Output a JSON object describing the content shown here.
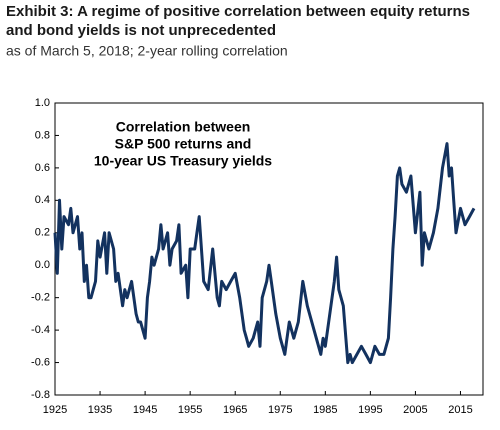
{
  "chart_data": {
    "type": "line",
    "title": [
      "Exhibit 3: A regime of positive correlation between equity returns",
      "and bond yields is not unprecedented"
    ],
    "subtitle": "as of March 5, 2018; 2-year rolling correlation",
    "annotation": [
      "Correlation between",
      "S&P 500 returns and",
      "10-year US Treasury yields"
    ],
    "x": [
      1925,
      1925.5,
      1926,
      1926.5,
      1927,
      1928,
      1928.5,
      1929,
      1930,
      1930.5,
      1931,
      1931.5,
      1932,
      1932.5,
      1933,
      1934,
      1934.5,
      1935,
      1936,
      1936.5,
      1937,
      1938,
      1938.5,
      1939,
      1940,
      1940.5,
      1941,
      1942,
      1943,
      1943.5,
      1944,
      1945,
      1945.5,
      1946,
      1946.5,
      1947,
      1948,
      1948.5,
      1949,
      1950,
      1950.5,
      1951,
      1952,
      1952.5,
      1953,
      1954,
      1954.5,
      1955,
      1956,
      1956.5,
      1957,
      1958,
      1959,
      1960,
      1961,
      1961.5,
      1962,
      1963,
      1964,
      1965,
      1966,
      1967,
      1967.5,
      1968,
      1969,
      1970,
      1970.5,
      1971,
      1972,
      1972.5,
      1973,
      1974,
      1975,
      1976,
      1976.5,
      1977,
      1978,
      1979,
      1980,
      1981,
      1982,
      1983,
      1984,
      1984.5,
      1985,
      1986,
      1987,
      1987.5,
      1988,
      1989,
      1990,
      1990.5,
      1991,
      1992,
      1993,
      1994,
      1995,
      1996,
      1997,
      1998,
      1999,
      1999.5,
      2000,
      2000.5,
      2001,
      2001.5,
      2002,
      2003,
      2004,
      2005,
      2006,
      2006.5,
      2007,
      2008,
      2009,
      2010,
      2011,
      2012,
      2012.5,
      2013,
      2013.5,
      2014,
      2015,
      2016,
      2017,
      2018
    ],
    "series": [
      {
        "name": "Correlation",
        "color": "#13325f",
        "values": [
          0.2,
          -0.05,
          0.4,
          0.1,
          0.3,
          0.25,
          0.35,
          0.2,
          0.3,
          0.1,
          0.2,
          -0.1,
          0.0,
          -0.2,
          -0.2,
          -0.1,
          0.15,
          0.05,
          0.2,
          -0.05,
          0.2,
          0.1,
          -0.1,
          -0.05,
          -0.25,
          -0.15,
          -0.2,
          -0.1,
          -0.3,
          -0.35,
          -0.35,
          -0.45,
          -0.2,
          -0.1,
          0.05,
          0.0,
          0.1,
          0.25,
          0.1,
          0.2,
          0.0,
          0.1,
          0.15,
          0.25,
          -0.05,
          0.0,
          -0.2,
          0.1,
          0.1,
          0.2,
          0.3,
          -0.1,
          -0.15,
          0.1,
          -0.2,
          -0.25,
          -0.1,
          -0.15,
          -0.1,
          -0.05,
          -0.2,
          -0.4,
          -0.45,
          -0.5,
          -0.45,
          -0.35,
          -0.5,
          -0.2,
          -0.1,
          0.0,
          -0.1,
          -0.3,
          -0.45,
          -0.55,
          -0.45,
          -0.35,
          -0.45,
          -0.35,
          -0.1,
          -0.25,
          -0.35,
          -0.45,
          -0.55,
          -0.45,
          -0.5,
          -0.3,
          -0.1,
          0.05,
          -0.15,
          -0.25,
          -0.6,
          -0.55,
          -0.6,
          -0.55,
          -0.5,
          -0.55,
          -0.6,
          -0.5,
          -0.55,
          -0.55,
          -0.45,
          -0.2,
          0.1,
          0.3,
          0.55,
          0.6,
          0.5,
          0.45,
          0.55,
          0.2,
          0.45,
          0.0,
          0.2,
          0.1,
          0.2,
          0.35,
          0.6,
          0.75,
          0.55,
          0.6,
          0.4,
          0.2,
          0.35,
          0.25,
          0.3,
          0.35
        ]
      }
    ],
    "xlim": [
      1925,
      2020
    ],
    "xticks": [
      1925,
      1935,
      1945,
      1955,
      1965,
      1975,
      1985,
      1995,
      2005,
      2015
    ],
    "ylim": [
      -0.8,
      1.0
    ],
    "yticks": [
      {
        "value": -0.8,
        "label": "-0.8"
      },
      {
        "value": -0.6,
        "label": "-0.6"
      },
      {
        "value": -0.4,
        "label": "-0.4"
      },
      {
        "value": -0.2,
        "label": "-0.2"
      },
      {
        "value": 0,
        "label": "0.0"
      },
      {
        "value": 0.2,
        "label": "0.2"
      },
      {
        "value": 0.4,
        "label": "0.4"
      },
      {
        "value": 0.6,
        "label": "0.6"
      },
      {
        "value": 0.8,
        "label": "0.8"
      },
      {
        "value": 1,
        "label": "1.0"
      }
    ]
  }
}
